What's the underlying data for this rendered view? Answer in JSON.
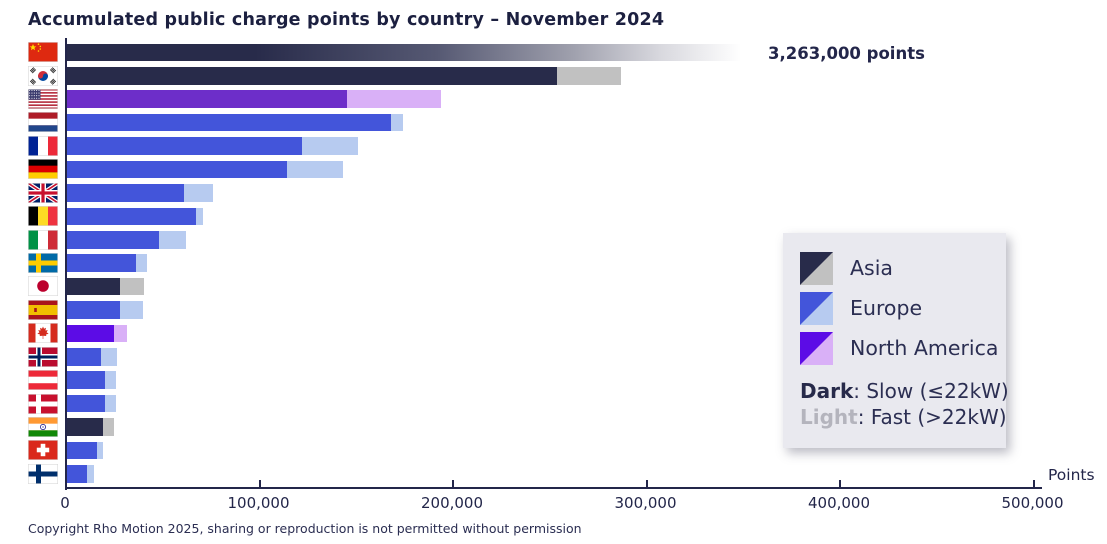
{
  "header": {
    "title": "Accumulated public charge points by country – November 2024"
  },
  "chart_data": {
    "type": "bar-horizontal-stacked",
    "orientation": "horizontal",
    "unit": "points",
    "x_axis_title": "Points",
    "x_max": 505000,
    "grid": false,
    "x_ticks": [
      {
        "value": 0,
        "label": "0"
      },
      {
        "value": 100000,
        "label": "100,000"
      },
      {
        "value": 200000,
        "label": "200,000"
      },
      {
        "value": 300000,
        "label": "300,000"
      },
      {
        "value": 400000,
        "label": "400,000"
      },
      {
        "value": 500000,
        "label": "500,000"
      }
    ],
    "annotation": "3,263,000 points",
    "stack_meaning": {
      "dark": "Slow (≤22kW)",
      "light": "Fast (>22kW)"
    },
    "colors": {
      "asia_dark": "#282b4a",
      "asia_light": "#c1c1c1",
      "europe_dark": "#4355da",
      "europe_light": "#b7cbf0",
      "north_america_dark": "#5c0ce6",
      "north_america_light": "#d9b0f7",
      "axis": "#23264a",
      "legend_bg": "#e9e9ef"
    },
    "countries": [
      {
        "name": "China",
        "flag_icon": "china-flag-icon",
        "flag": "cn",
        "region": "Asia",
        "slow": null,
        "fast": null,
        "total": 3263000,
        "overflow": true
      },
      {
        "name": "South Korea",
        "flag_icon": "south-korea-flag-icon",
        "flag": "kr",
        "region": "Asia",
        "slow": 254000,
        "fast": 33000,
        "total": 287000
      },
      {
        "name": "United States",
        "flag_icon": "united-states-flag-icon",
        "flag": "us",
        "region": "North America",
        "slow": 145000,
        "fast": 49000,
        "total": 194000,
        "dark_color": "#6d2ec9"
      },
      {
        "name": "Netherlands",
        "flag_icon": "netherlands-flag-icon",
        "flag": "nl",
        "region": "Europe",
        "slow": 168000,
        "fast": 6000,
        "total": 174000
      },
      {
        "name": "France",
        "flag_icon": "france-flag-icon",
        "flag": "fr",
        "region": "Europe",
        "slow": 122000,
        "fast": 29000,
        "total": 151000
      },
      {
        "name": "Germany",
        "flag_icon": "germany-flag-icon",
        "flag": "de",
        "region": "Europe",
        "slow": 114000,
        "fast": 29000,
        "total": 143000
      },
      {
        "name": "United Kingdom",
        "flag_icon": "united-kingdom-flag-icon",
        "flag": "gb",
        "region": "Europe",
        "slow": 61000,
        "fast": 15000,
        "total": 76000
      },
      {
        "name": "Belgium",
        "flag_icon": "belgium-flag-icon",
        "flag": "be",
        "region": "Europe",
        "slow": 67000,
        "fast": 4000,
        "total": 71000
      },
      {
        "name": "Italy",
        "flag_icon": "italy-flag-icon",
        "flag": "it",
        "region": "Europe",
        "slow": 48000,
        "fast": 14000,
        "total": 62000
      },
      {
        "name": "Sweden",
        "flag_icon": "sweden-flag-icon",
        "flag": "se",
        "region": "Europe",
        "slow": 36000,
        "fast": 6000,
        "total": 42000
      },
      {
        "name": "Japan",
        "flag_icon": "japan-flag-icon",
        "flag": "jp",
        "region": "Asia",
        "slow": 28000,
        "fast": 12500,
        "total": 40500
      },
      {
        "name": "Spain",
        "flag_icon": "spain-flag-icon",
        "flag": "es",
        "region": "Europe",
        "slow": 28000,
        "fast": 12000,
        "total": 40000
      },
      {
        "name": "Canada",
        "flag_icon": "canada-flag-icon",
        "flag": "ca",
        "region": "North America",
        "slow": 25000,
        "fast": 6500,
        "total": 31500
      },
      {
        "name": "Norway",
        "flag_icon": "norway-flag-icon",
        "flag": "no",
        "region": "Europe",
        "slow": 18000,
        "fast": 8200,
        "total": 26200
      },
      {
        "name": "Austria",
        "flag_icon": "austria-flag-icon",
        "flag": "at",
        "region": "Europe",
        "slow": 20000,
        "fast": 6000,
        "total": 26000
      },
      {
        "name": "Denmark",
        "flag_icon": "denmark-flag-icon",
        "flag": "dk",
        "region": "Europe",
        "slow": 20000,
        "fast": 5700,
        "total": 25700
      },
      {
        "name": "India",
        "flag_icon": "india-flag-icon",
        "flag": "in",
        "region": "Asia",
        "slow": 19000,
        "fast": 6000,
        "total": 25000
      },
      {
        "name": "Switzerland",
        "flag_icon": "switzerland-flag-icon",
        "flag": "ch",
        "region": "Europe",
        "slow": 16000,
        "fast": 3300,
        "total": 19300
      },
      {
        "name": "Finland",
        "flag_icon": "finland-flag-icon",
        "flag": "fi",
        "region": "Europe",
        "slow": 10700,
        "fast": 3900,
        "total": 14600
      }
    ]
  },
  "legend": {
    "items": [
      {
        "label": "Asia"
      },
      {
        "label": "Europe"
      },
      {
        "label": "North America"
      }
    ],
    "note": {
      "dark_label": "Dark",
      "dark_rest": ": Slow (≤22kW)",
      "light_label": "Light",
      "light_rest": ": Fast (>22kW)"
    }
  },
  "footer": {
    "copyright": "Copyright Rho Motion 2025, sharing or reproduction is not permitted without permission"
  }
}
